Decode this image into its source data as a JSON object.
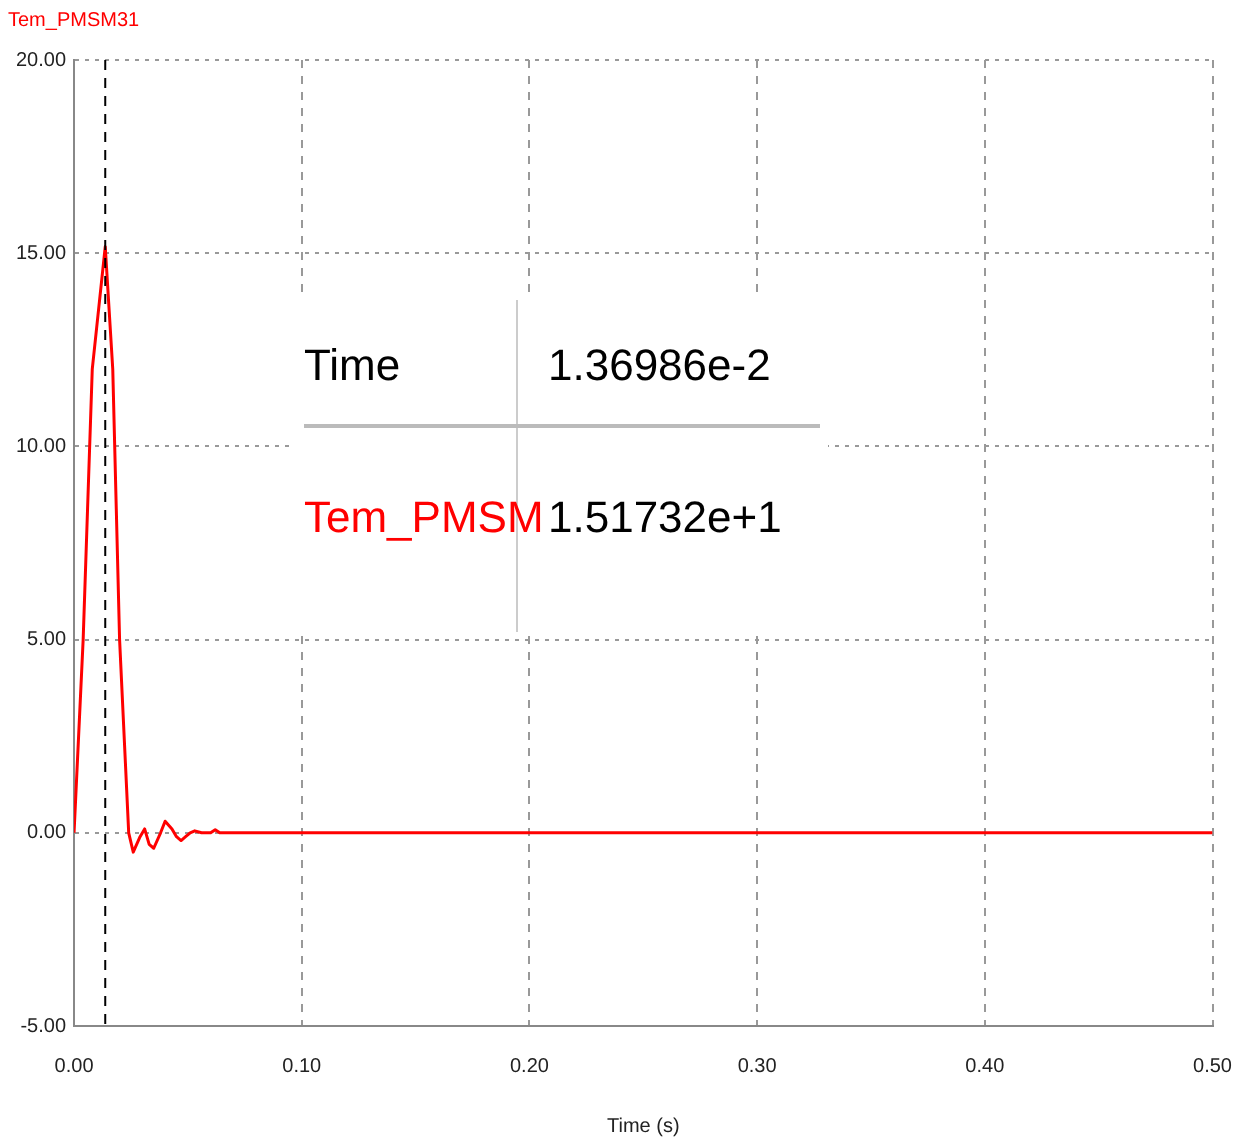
{
  "chart_data": {
    "type": "line",
    "title": "Tem_PMSM31",
    "xlabel": "Time (s)",
    "xlim": [
      0,
      0.5
    ],
    "xticks": [
      {
        "value": 0,
        "label": "0.00"
      },
      {
        "value": 0.1,
        "label": "0.10"
      },
      {
        "value": 0.2,
        "label": "0.20"
      },
      {
        "value": 0.3,
        "label": "0.30"
      },
      {
        "value": 0.4,
        "label": "0.40"
      },
      {
        "value": 0.5,
        "label": "0.50"
      }
    ],
    "ylim": [
      -5,
      20
    ],
    "yticks": [
      {
        "value": -5,
        "label": "-5.00"
      },
      {
        "value": 0,
        "label": "0.00"
      },
      {
        "value": 5,
        "label": "5.00"
      },
      {
        "value": 10,
        "label": "10.00"
      },
      {
        "value": 15,
        "label": "15.00"
      },
      {
        "value": 20,
        "label": "20.00"
      }
    ],
    "grid": true,
    "legend": false,
    "marker": "none",
    "line_style": "solid",
    "series": [
      {
        "name": "Tem_PMSM",
        "color": "#ff0000",
        "x": [
          0,
          0.004,
          0.008,
          0.0137,
          0.017,
          0.02,
          0.024,
          0.026,
          0.029,
          0.031,
          0.033,
          0.035,
          0.038,
          0.04,
          0.043,
          0.045,
          0.047,
          0.049,
          0.051,
          0.053,
          0.056,
          0.06,
          0.062,
          0.064,
          0.5
        ],
        "values": [
          0,
          5,
          12,
          15.17,
          12,
          5,
          0,
          -0.5,
          -0.1,
          0.1,
          -0.3,
          -0.4,
          0,
          0.3,
          0.1,
          -0.1,
          -0.2,
          -0.1,
          0,
          0.05,
          0,
          0,
          0.08,
          0,
          0
        ]
      }
    ],
    "ref_lines": [
      {
        "axis": "x",
        "value": 0.0137,
        "color": "#000000",
        "line_style": "dashed"
      }
    ],
    "annotations": [
      "Time",
      "1.36986e-2",
      "1.51732e+1"
    ]
  }
}
